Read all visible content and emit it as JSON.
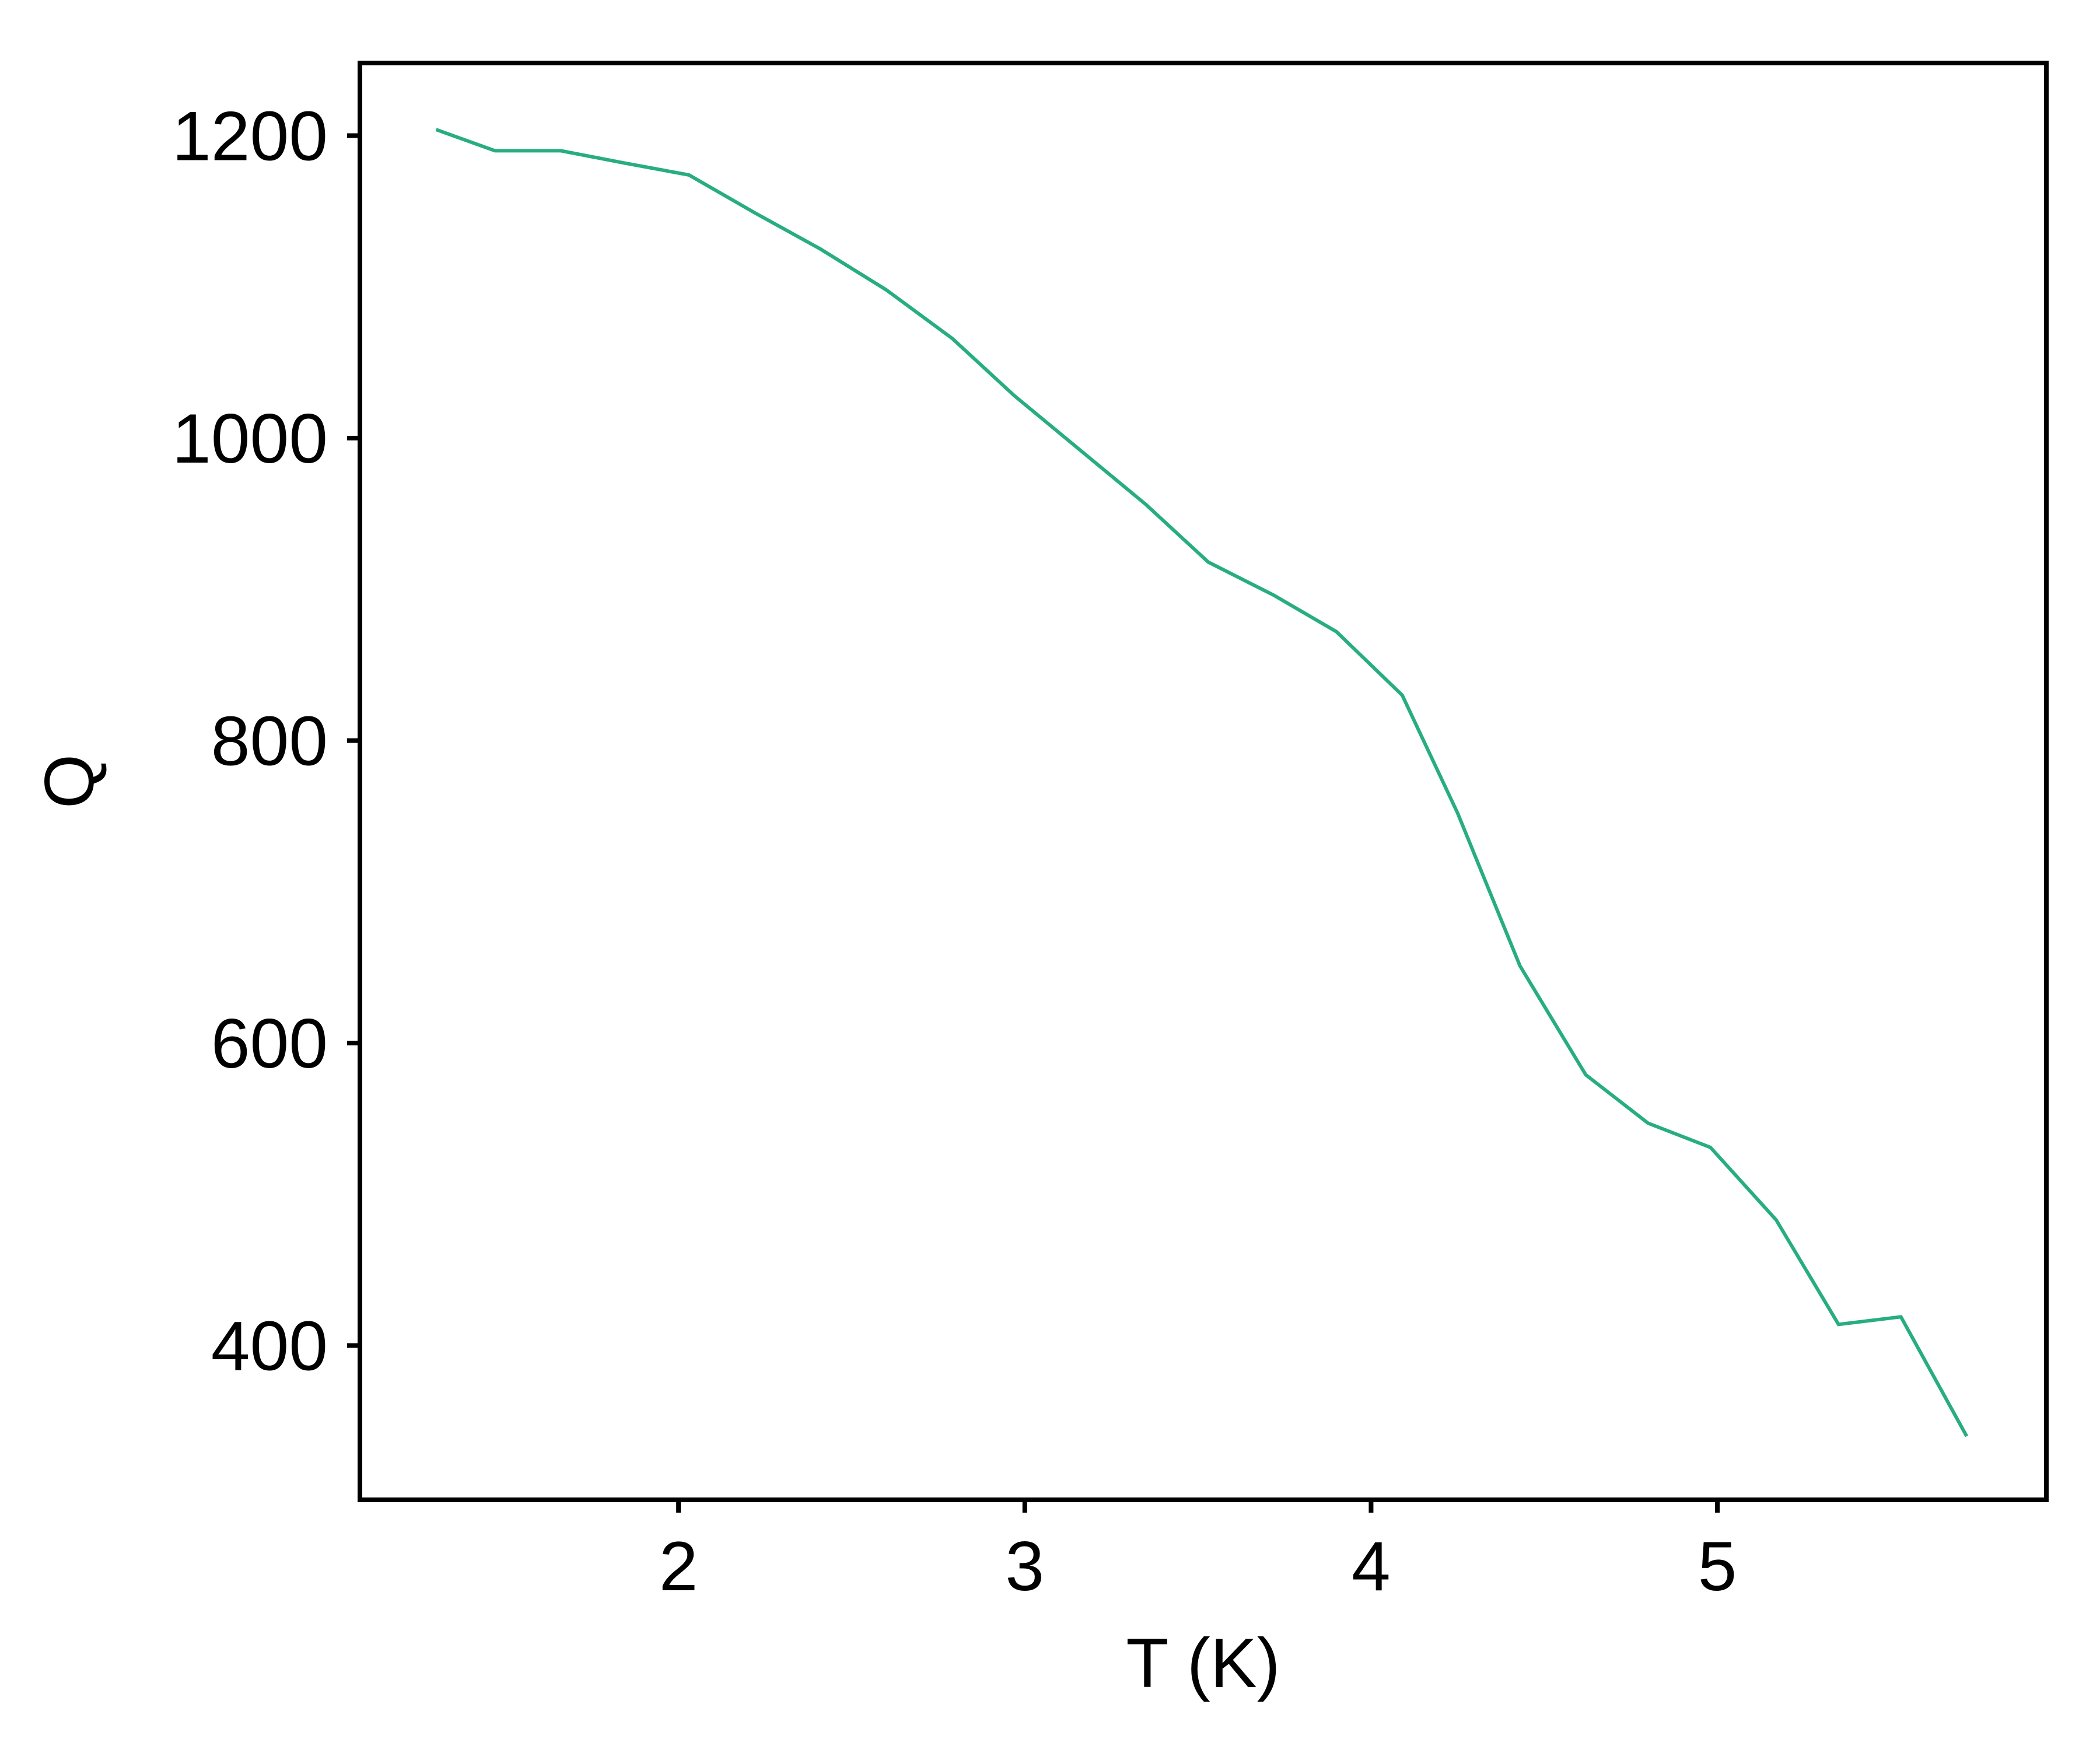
{
  "chart_data": {
    "type": "line",
    "title": "",
    "xlabel": "T (K)",
    "ylabel": "Q",
    "xlim": [
      1.08,
      5.95
    ],
    "ylim": [
      298,
      1248
    ],
    "xticks": [
      2,
      3,
      4,
      5
    ],
    "yticks": [
      400,
      600,
      800,
      1000,
      1200
    ],
    "grid": false,
    "legend": "none",
    "colors": {
      "line": "#27ad81",
      "axes": "#000000"
    },
    "series": [
      {
        "x": [
          1.3,
          1.47,
          1.66,
          1.84,
          2.03,
          2.22,
          2.41,
          2.6,
          2.79,
          2.97,
          3.16,
          3.35,
          3.53,
          3.72,
          3.9,
          4.09,
          4.25,
          4.43,
          4.62,
          4.8,
          4.98,
          5.17,
          5.35,
          5.53,
          5.72
        ],
        "y": [
          1204,
          1190,
          1190,
          1182,
          1174,
          1149,
          1125,
          1098,
          1066,
          1028,
          992,
          956,
          918,
          896,
          872,
          830,
          752,
          651,
          579,
          547,
          531,
          483,
          414,
          419,
          340
        ]
      }
    ]
  }
}
